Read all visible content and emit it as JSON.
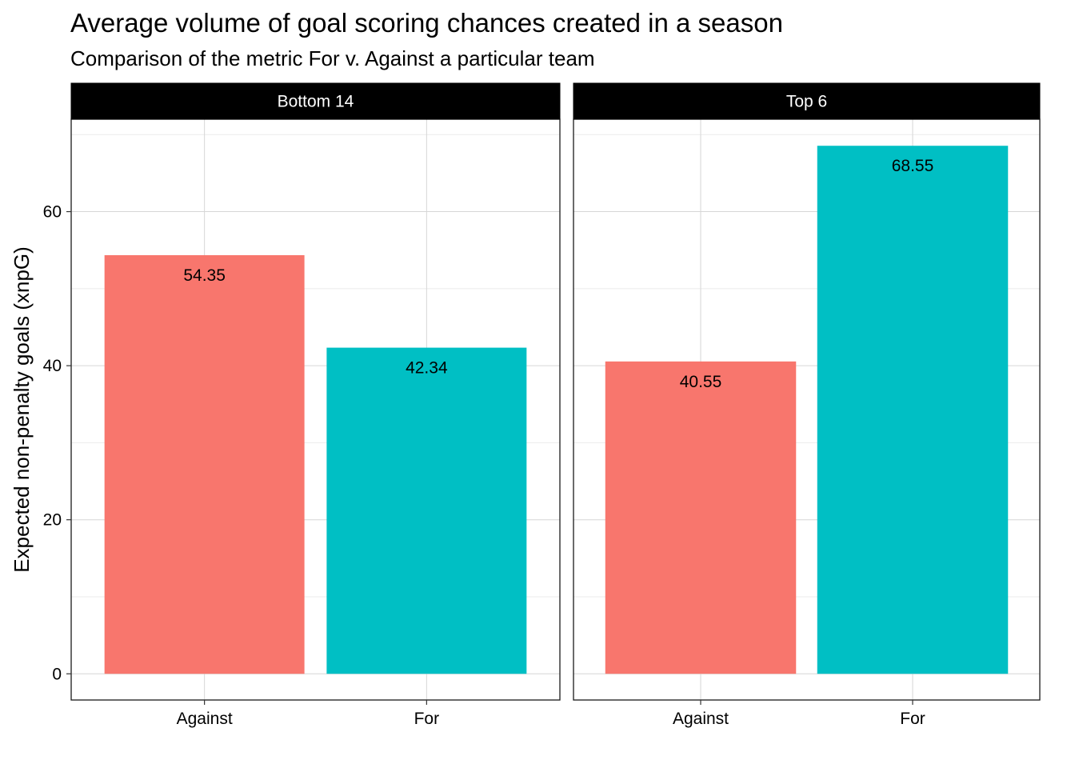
{
  "chart_data": {
    "type": "bar",
    "title": "Average volume of goal scoring chances created in a season",
    "subtitle": "Comparison of the metric For v. Against a particular team",
    "xlabel": "",
    "ylabel": "Expected non-penalty goals (xnpG)",
    "ylim": [
      -3.4,
      72.0
    ],
    "yticks": [
      0,
      20,
      40,
      60
    ],
    "grid": true,
    "legend": "none",
    "categories": [
      "Against",
      "For"
    ],
    "colors": {
      "Against": "#F8766D",
      "For": "#00BFC4"
    },
    "panels": [
      {
        "name": "Bottom 14",
        "values": [
          54.35,
          42.34
        ],
        "labels": [
          "54.35",
          "42.34"
        ]
      },
      {
        "name": "Top 6",
        "values": [
          40.55,
          68.55
        ],
        "labels": [
          "40.55",
          "68.55"
        ]
      }
    ]
  }
}
